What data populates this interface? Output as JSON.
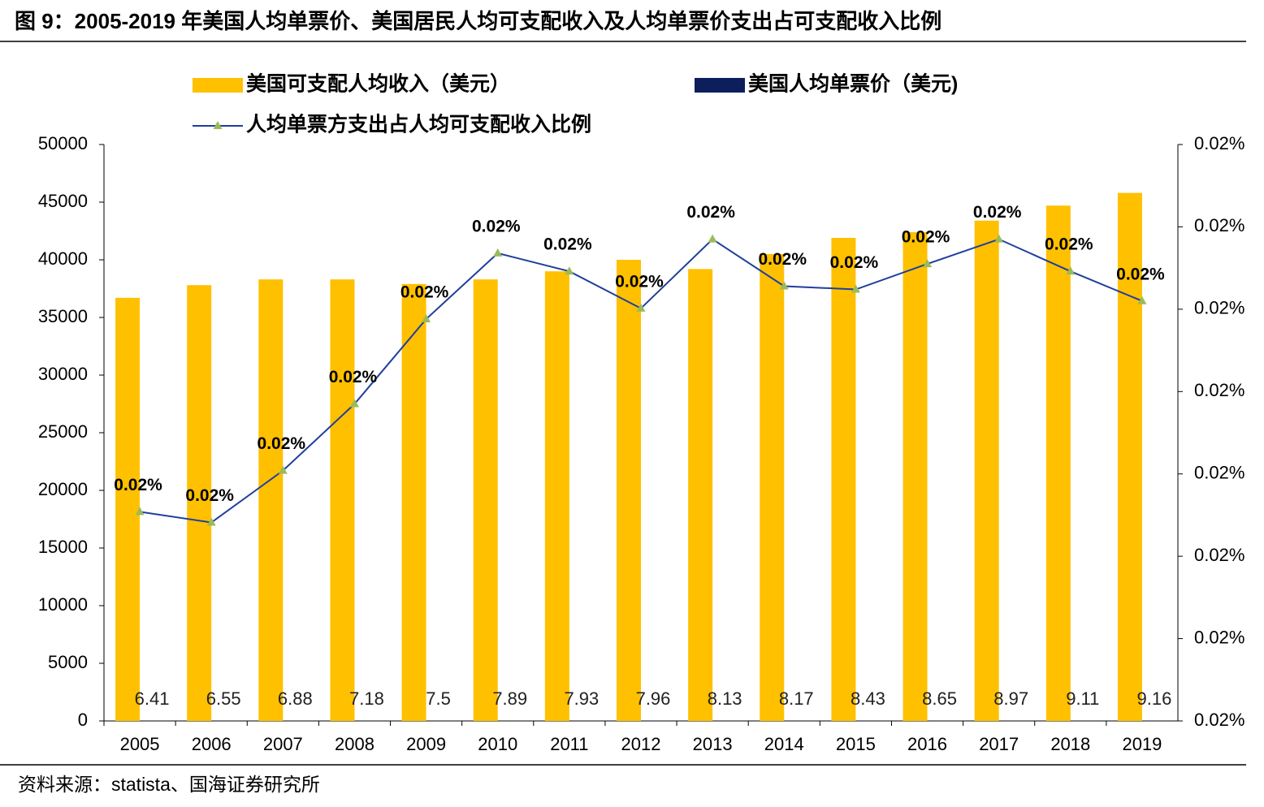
{
  "chart_data": {
    "type": "bar",
    "title": "图 9：2005-2019 年美国人均单票价、美国居民人均可支配收入及人均单票价支出占可支配收入比例",
    "source": "资料来源：statista、国海证券研究所",
    "categories": [
      "2005",
      "2006",
      "2007",
      "2008",
      "2009",
      "2010",
      "2011",
      "2012",
      "2013",
      "2014",
      "2015",
      "2016",
      "2017",
      "2018",
      "2019"
    ],
    "series": [
      {
        "name": "美国可支配人均收入（美元）",
        "type": "bar",
        "color": "#ffc000",
        "values": [
          36700,
          37800,
          38300,
          38300,
          37900,
          38300,
          39000,
          40000,
          39200,
          40500,
          41900,
          42400,
          43400,
          44700,
          45800
        ]
      },
      {
        "name": "美国人均单票价（美元)",
        "type": "bar",
        "color": "#0c1f5c",
        "values": [
          6.41,
          6.55,
          6.88,
          7.18,
          7.5,
          7.89,
          7.93,
          7.96,
          8.13,
          8.17,
          8.43,
          8.65,
          8.97,
          9.11,
          9.16
        ]
      },
      {
        "name": "人均单票方支出占人均可支配收入比例",
        "type": "line",
        "axis": "y2",
        "color": "#1f3f9c",
        "marker_color": "#9bbb59",
        "values": [
          0.01754,
          0.01741,
          0.01804,
          0.01885,
          0.01988,
          0.02068,
          0.02046,
          0.02001,
          0.02085,
          0.02028,
          0.02024,
          0.02055,
          0.02085,
          0.02046,
          0.0201
        ],
        "value_labels": [
          "0.02%",
          "0.02%",
          "0.02%",
          "0.02%",
          "0.02%",
          "0.02%",
          "0.02%",
          "0.02%",
          "0.02%",
          "0.02%",
          "0.02%",
          "0.02%",
          "0.02%",
          "0.02%",
          "0.02%"
        ]
      }
    ],
    "ylim": [
      0,
      50000
    ],
    "yticks": [
      0,
      5000,
      10000,
      15000,
      20000,
      25000,
      30000,
      35000,
      40000,
      45000,
      50000
    ],
    "y2lim": [
      0.015,
      0.022
    ],
    "y2ticks": [
      {
        "value": 0.015,
        "label": "0.02%"
      },
      {
        "value": 0.016,
        "label": "0.02%"
      },
      {
        "value": 0.017,
        "label": "0.02%"
      },
      {
        "value": 0.018,
        "label": "0.02%"
      },
      {
        "value": 0.019,
        "label": "0.02%"
      },
      {
        "value": 0.02,
        "label": "0.02%"
      },
      {
        "value": 0.021,
        "label": "0.02%"
      },
      {
        "value": 0.022,
        "label": "0.02%"
      }
    ]
  }
}
